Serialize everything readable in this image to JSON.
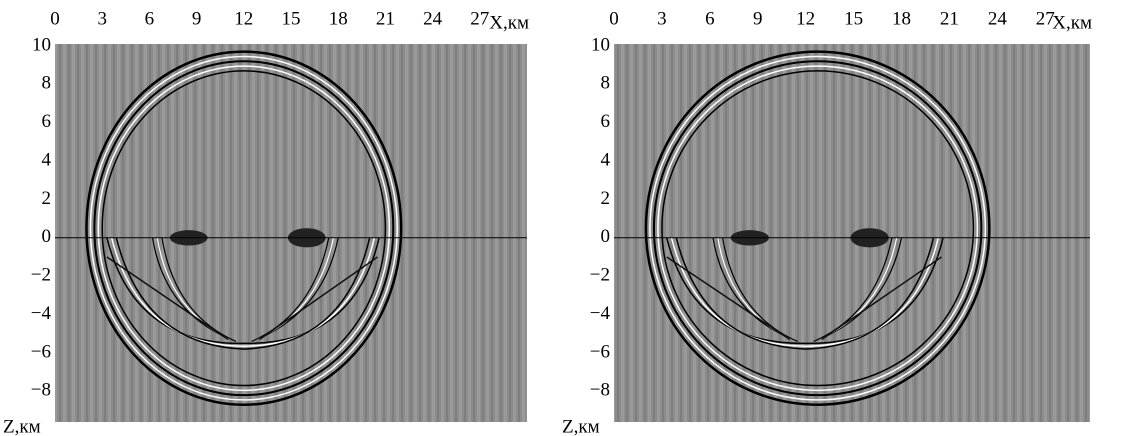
{
  "chart_data": [
    {
      "type": "image",
      "x_label": "X,км",
      "y_label": "Z,км",
      "xlim": [
        0,
        30
      ],
      "ylim": [
        -9.6,
        10.1
      ],
      "xticks": [
        0,
        3,
        6,
        9,
        12,
        15,
        18,
        21,
        24,
        27
      ],
      "yticks": [
        10,
        8,
        6,
        4,
        2,
        0,
        {
          "value": -2,
          "label": "−2"
        },
        {
          "value": -4,
          "label": "−4"
        },
        {
          "value": -6,
          "label": "−6"
        },
        {
          "value": -8,
          "label": "−8"
        }
      ]
    },
    {
      "type": "image",
      "x_label": "X,км",
      "y_label": "Z,км",
      "xlim": [
        0,
        29.8
      ],
      "ylim": [
        -9.6,
        10.1
      ],
      "xticks": [
        0,
        3,
        6,
        9,
        12,
        15,
        18,
        21,
        24,
        27
      ],
      "yticks": [
        10,
        8,
        6,
        4,
        2,
        0,
        {
          "value": -2,
          "label": "−2"
        },
        {
          "value": -4,
          "label": "−4"
        },
        {
          "value": -6,
          "label": "−6"
        },
        {
          "value": -8,
          "label": "−8"
        }
      ]
    }
  ]
}
